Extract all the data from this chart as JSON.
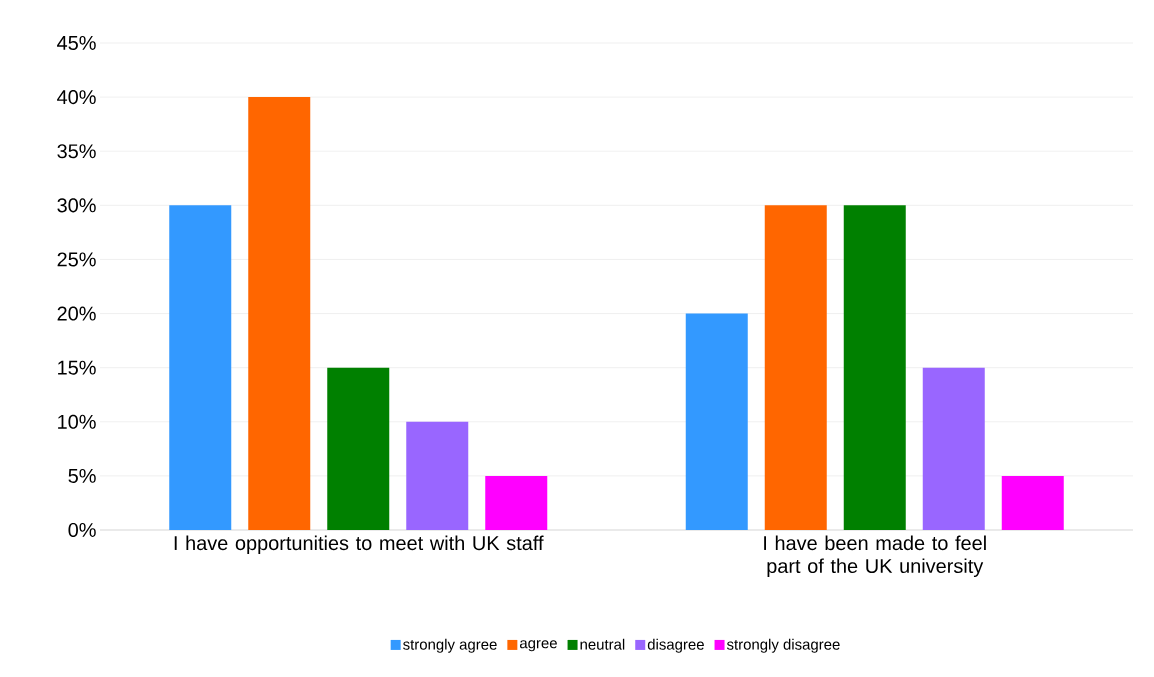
{
  "chart_data": {
    "type": "bar",
    "categories": [
      "I have opportunities to meet with UK staff",
      "I have been made to feel part of the UK university"
    ],
    "series": [
      {
        "name": "strongly agree",
        "color": "#3399ff",
        "values": [
          30,
          20
        ]
      },
      {
        "name": "agree",
        "color": "#ff6600",
        "values": [
          40,
          30
        ]
      },
      {
        "name": "neutral",
        "color": "#008000",
        "values": [
          15,
          30
        ]
      },
      {
        "name": "disagree",
        "color": "#9966ff",
        "values": [
          10,
          15
        ]
      },
      {
        "name": "strongly disagree",
        "color": "#ff00ff",
        "values": [
          5,
          5
        ]
      }
    ],
    "ylim": [
      0,
      45
    ],
    "yticks": [
      {
        "value": 0,
        "label": "0%"
      },
      {
        "value": 5,
        "label": "5%"
      },
      {
        "value": 10,
        "label": "10%"
      },
      {
        "value": 15,
        "label": "15%"
      },
      {
        "value": 20,
        "label": "20%"
      },
      {
        "value": 25,
        "label": "25%"
      },
      {
        "value": 30,
        "label": "30%"
      },
      {
        "value": 35,
        "label": "35%"
      },
      {
        "value": 40,
        "label": "40%"
      },
      {
        "value": 45,
        "label": "45%"
      }
    ],
    "grid": "y",
    "legend": "bottom"
  }
}
